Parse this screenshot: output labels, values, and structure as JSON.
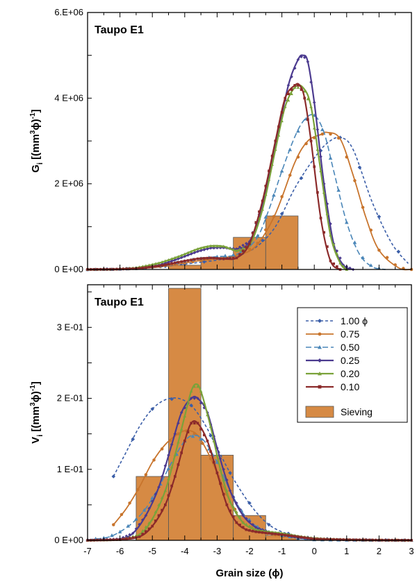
{
  "colors": {
    "s100": "#3b5ea8",
    "s075": "#c8742c",
    "s050": "#4a86b8",
    "s025": "#4b3a8f",
    "s020": "#7aa23a",
    "s010": "#8b2a2a",
    "sieving_fill": "#d68a44",
    "sieving_stroke": "#555555"
  },
  "chart_data": [
    {
      "type": "line",
      "title": "Taupo E1",
      "ylabel_main": "G",
      "ylabel_sub": "i",
      "ylabel_rest": " [(mm",
      "ylabel_sup": "3",
      "ylabel_end": "ϕ)",
      "ylabel_sup2": "-1",
      "ylabel_close": "]",
      "xlim": [
        -7,
        3
      ],
      "ylim": [
        0,
        6000000
      ],
      "yticks": [
        {
          "v": 0,
          "label": "0 E+00"
        },
        {
          "v": 2000000,
          "label": "2 E+06"
        },
        {
          "v": 4000000,
          "label": "4 E+06"
        },
        {
          "v": 6000000,
          "label": "6.E+06"
        }
      ],
      "sieving": [
        {
          "x0": -4.5,
          "x1": -3.5,
          "v": 100000
        },
        {
          "x0": -3.5,
          "x1": -2.5,
          "v": 280000
        },
        {
          "x0": -2.5,
          "x1": -1.5,
          "v": 750000
        },
        {
          "x0": -1.5,
          "x1": -0.5,
          "v": 1250000
        }
      ],
      "series": [
        {
          "key": "s100",
          "x": [
            -7,
            -6.2,
            -5.5,
            -4.8,
            -4.2,
            -3.6,
            -3.0,
            -2.4,
            -1.8,
            -1.2,
            -0.6,
            0,
            0.4,
            0.8,
            1.2,
            1.8,
            2.4,
            2.9
          ],
          "values": [
            0,
            10000,
            25000,
            60000,
            110000,
            160000,
            220000,
            320000,
            520000,
            1000000,
            1900000,
            2600000,
            2950000,
            3080000,
            2800000,
            1550000,
            600000,
            140000
          ]
        },
        {
          "key": "s075",
          "x": [
            -7,
            -6.2,
            -5.5,
            -4.8,
            -4.2,
            -3.6,
            -3.0,
            -2.4,
            -1.8,
            -1.2,
            -0.6,
            -0.2,
            0.2,
            0.4,
            0.8,
            1.2,
            1.6,
            2.0,
            2.6,
            3.0
          ],
          "values": [
            0,
            5000,
            20000,
            60000,
            130000,
            200000,
            260000,
            330000,
            550000,
            1300000,
            2500000,
            3000000,
            3150000,
            3200000,
            3050000,
            2200000,
            1200000,
            450000,
            40000,
            0
          ]
        },
        {
          "key": "s050",
          "x": [
            -7,
            -6.2,
            -5.5,
            -4.8,
            -4.2,
            -3.6,
            -3.0,
            -2.4,
            -1.8,
            -1.4,
            -1.0,
            -0.6,
            -0.3,
            0,
            0.3,
            0.6,
            1.0,
            1.4,
            1.8,
            2.2
          ],
          "values": [
            0,
            5000,
            25000,
            80000,
            170000,
            250000,
            300000,
            350000,
            700000,
            1400000,
            2300000,
            3100000,
            3500000,
            3600000,
            3200000,
            2300000,
            1100000,
            350000,
            60000,
            0
          ]
        },
        {
          "key": "s025",
          "x": [
            -7,
            -6.2,
            -5.5,
            -4.8,
            -4.2,
            -3.6,
            -3.2,
            -2.8,
            -2.4,
            -2.0,
            -1.6,
            -1.2,
            -0.8,
            -0.5,
            -0.35,
            -0.2,
            0,
            0.3,
            0.6,
            0.9,
            1.2
          ],
          "values": [
            0,
            5000,
            30000,
            100000,
            250000,
            420000,
            500000,
            510000,
            480000,
            650000,
            1500000,
            2900000,
            4300000,
            4900000,
            5000000,
            4850000,
            3900000,
            2000000,
            600000,
            100000,
            0
          ]
        },
        {
          "key": "s020",
          "x": [
            -7,
            -6.2,
            -5.5,
            -4.8,
            -4.2,
            -3.6,
            -3.2,
            -2.8,
            -2.4,
            -2.0,
            -1.6,
            -1.2,
            -0.9,
            -0.6,
            -0.35,
            -0.1,
            0.2,
            0.5,
            0.8,
            1.0
          ],
          "values": [
            0,
            5000,
            40000,
            150000,
            300000,
            480000,
            550000,
            540000,
            440000,
            560000,
            1400000,
            2800000,
            3800000,
            4250000,
            4250000,
            3800000,
            2300000,
            800000,
            150000,
            0
          ]
        },
        {
          "key": "s010",
          "x": [
            -7,
            -6.2,
            -5.5,
            -4.8,
            -4.2,
            -3.6,
            -3.2,
            -2.8,
            -2.4,
            -2.0,
            -1.6,
            -1.2,
            -0.9,
            -0.6,
            -0.45,
            -0.3,
            -0.1,
            0.2,
            0.5,
            0.8
          ],
          "values": [
            0,
            5000,
            20000,
            80000,
            170000,
            250000,
            270000,
            250000,
            270000,
            600000,
            1600000,
            3000000,
            4000000,
            4300000,
            4300000,
            4000000,
            3000000,
            1200000,
            200000,
            0
          ]
        }
      ]
    },
    {
      "type": "line",
      "title": "Taupo E1",
      "ylabel_main": "V",
      "ylabel_sub": "i",
      "ylabel_rest": " [(mm",
      "ylabel_sup": "3",
      "ylabel_end": "ϕ)",
      "ylabel_sup2": "-1",
      "ylabel_close": "]",
      "xlabel": "Grain size (ϕ)",
      "xlim": [
        -7,
        3
      ],
      "ylim": [
        0,
        0.36
      ],
      "xticks": [
        {
          "v": -7,
          "label": "-7"
        },
        {
          "v": -6,
          "label": "-6"
        },
        {
          "v": -5,
          "label": "-5"
        },
        {
          "v": -4,
          "label": "-4"
        },
        {
          "v": -3,
          "label": "-3"
        },
        {
          "v": -2,
          "label": "-2"
        },
        {
          "v": -1,
          "label": "-1"
        },
        {
          "v": 0,
          "label": "0"
        },
        {
          "v": 1,
          "label": "1"
        },
        {
          "v": 2,
          "label": "2"
        },
        {
          "v": 3,
          "label": "3"
        }
      ],
      "yticks": [
        {
          "v": 0,
          "label": "0 E+00"
        },
        {
          "v": 0.1,
          "label": "1 E-01"
        },
        {
          "v": 0.2,
          "label": "2 E-01"
        },
        {
          "v": 0.3,
          "label": "3 E-01"
        }
      ],
      "sieving": [
        {
          "x0": -5.5,
          "x1": -4.5,
          "v": 0.09
        },
        {
          "x0": -4.5,
          "x1": -3.5,
          "v": 0.355
        },
        {
          "x0": -3.5,
          "x1": -2.5,
          "v": 0.12
        },
        {
          "x0": -2.5,
          "x1": -1.5,
          "v": 0.035
        },
        {
          "x0": -1.5,
          "x1": -0.5,
          "v": 0.007
        }
      ],
      "series": [
        {
          "key": "s100",
          "x": [
            -6.2,
            -5.8,
            -5.4,
            -5.0,
            -4.6,
            -4.2,
            -3.8,
            -3.4,
            -3.0,
            -2.6,
            -2.2,
            -1.8,
            -1.4,
            -1.0,
            -0.6,
            -0.2,
            0.4,
            1.0,
            2.0,
            3.0
          ],
          "values": [
            0.09,
            0.125,
            0.16,
            0.185,
            0.198,
            0.2,
            0.19,
            0.165,
            0.13,
            0.095,
            0.065,
            0.04,
            0.022,
            0.012,
            0.007,
            0.004,
            0.002,
            0.001,
            0.0005,
            0.0002
          ]
        },
        {
          "key": "s075",
          "x": [
            -6.2,
            -5.8,
            -5.4,
            -5.0,
            -4.6,
            -4.2,
            -3.9,
            -3.6,
            -3.3,
            -3.0,
            -2.6,
            -2.2,
            -1.8,
            -1.4,
            -1.0,
            -0.6,
            -0.2,
            0.4,
            1.0,
            2.0,
            3.0
          ],
          "values": [
            0.022,
            0.045,
            0.075,
            0.11,
            0.135,
            0.15,
            0.155,
            0.148,
            0.125,
            0.095,
            0.055,
            0.025,
            0.014,
            0.009,
            0.006,
            0.004,
            0.003,
            0.001,
            0.0005,
            0.0002,
            0.0001
          ]
        },
        {
          "key": "s050",
          "x": [
            -7,
            -6.4,
            -6.0,
            -5.6,
            -5.2,
            -4.8,
            -4.4,
            -4.0,
            -3.7,
            -3.4,
            -3.0,
            -2.6,
            -2.2,
            -1.8,
            -1.4,
            -1.0,
            -0.5,
            0,
            1.0,
            2.0,
            3.0
          ],
          "values": [
            0.001,
            0.004,
            0.012,
            0.025,
            0.045,
            0.075,
            0.11,
            0.14,
            0.148,
            0.14,
            0.11,
            0.07,
            0.038,
            0.02,
            0.012,
            0.007,
            0.003,
            0.001,
            0.0005,
            0.0002,
            0.0001
          ]
        },
        {
          "key": "s025",
          "x": [
            -7,
            -6.0,
            -5.6,
            -5.2,
            -4.8,
            -4.4,
            -4.1,
            -3.8,
            -3.6,
            -3.3,
            -3.0,
            -2.6,
            -2.2,
            -1.8,
            -1.4,
            -1.0,
            -0.5,
            0,
            1.0,
            2.0,
            3.0
          ],
          "values": [
            0,
            0.002,
            0.01,
            0.035,
            0.075,
            0.135,
            0.18,
            0.2,
            0.2,
            0.18,
            0.13,
            0.07,
            0.035,
            0.018,
            0.012,
            0.008,
            0.004,
            0.002,
            0.0008,
            0.0003,
            0.0001
          ]
        },
        {
          "key": "s020",
          "x": [
            -7,
            -6.0,
            -5.4,
            -5.0,
            -4.6,
            -4.3,
            -4.0,
            -3.8,
            -3.65,
            -3.5,
            -3.2,
            -2.9,
            -2.6,
            -2.2,
            -1.8,
            -1.4,
            -1.0,
            -0.5,
            0,
            1.0,
            2.0,
            3.0
          ],
          "values": [
            0,
            0.001,
            0.008,
            0.03,
            0.07,
            0.12,
            0.175,
            0.21,
            0.22,
            0.21,
            0.16,
            0.1,
            0.055,
            0.025,
            0.015,
            0.012,
            0.01,
            0.006,
            0.003,
            0.001,
            0.0003,
            0.0001
          ]
        },
        {
          "key": "s010",
          "x": [
            -7,
            -6.0,
            -5.4,
            -5.0,
            -4.6,
            -4.3,
            -4.0,
            -3.8,
            -3.6,
            -3.3,
            -3.0,
            -2.7,
            -2.4,
            -2.1,
            -1.8,
            -1.4,
            -1.0,
            -0.5,
            0,
            1.0,
            2.0,
            3.0
          ],
          "values": [
            0,
            0.001,
            0.005,
            0.02,
            0.05,
            0.09,
            0.14,
            0.165,
            0.165,
            0.14,
            0.095,
            0.05,
            0.025,
            0.015,
            0.012,
            0.01,
            0.008,
            0.005,
            0.002,
            0.0008,
            0.0003,
            0.0001
          ]
        }
      ],
      "legend": {
        "placement": "top-right",
        "entries": [
          {
            "key": "s100",
            "label": "1.00 ϕ",
            "dash": "4,3",
            "marker": "diamond"
          },
          {
            "key": "s075",
            "label": "0.75",
            "dash": "",
            "marker": "circle"
          },
          {
            "key": "s050",
            "label": "0.50",
            "dash": "8,4",
            "marker": "triangle"
          },
          {
            "key": "s025",
            "label": "0.25",
            "dash": "",
            "marker": "diamond"
          },
          {
            "key": "s020",
            "label": "0.20",
            "dash": "",
            "marker": "triangle"
          },
          {
            "key": "s010",
            "label": "0.10",
            "dash": "",
            "marker": "square"
          }
        ],
        "sieving_label": "Sieving"
      }
    }
  ]
}
